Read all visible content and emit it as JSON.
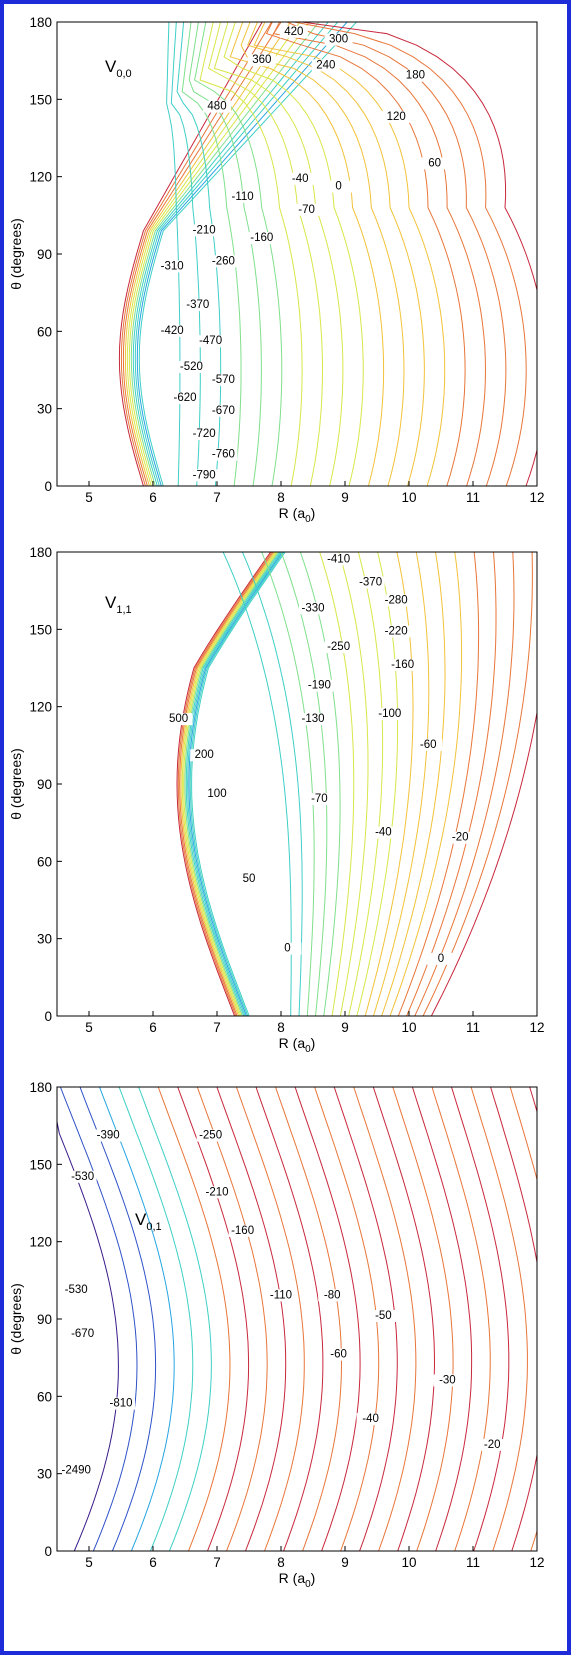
{
  "frame_color": "#1d2bd8",
  "colormap": [
    "#3a1a8a",
    "#2f52c8",
    "#25a4e2",
    "#3ecfc6",
    "#7fe08c",
    "#d8e64a",
    "#f2c23a",
    "#e8763a",
    "#c8283c"
  ],
  "chart_data": [
    {
      "type": "contour",
      "title": "V",
      "title_subscript": "0,0",
      "xlabel": "R (a",
      "xlabel_subscript": "0",
      "xlabel_suffix": ")",
      "ylabel": "θ (degrees)",
      "xlim": [
        4.5,
        12
      ],
      "ylim": [
        0,
        180
      ],
      "xticks": [
        5,
        6,
        7,
        8,
        9,
        10,
        11,
        12
      ],
      "yticks": [
        0,
        30,
        60,
        90,
        120,
        150,
        180
      ],
      "contour_labels": [
        {
          "text": "420",
          "x": 8.2,
          "y": 175
        },
        {
          "text": "300",
          "x": 8.9,
          "y": 172
        },
        {
          "text": "360",
          "x": 7.7,
          "y": 164
        },
        {
          "text": "240",
          "x": 8.7,
          "y": 162
        },
        {
          "text": "180",
          "x": 10.1,
          "y": 158
        },
        {
          "text": "480",
          "x": 7.0,
          "y": 146
        },
        {
          "text": "120",
          "x": 9.8,
          "y": 142
        },
        {
          "text": "60",
          "x": 10.4,
          "y": 124
        },
        {
          "text": "-40",
          "x": 8.3,
          "y": 118
        },
        {
          "text": "0",
          "x": 8.9,
          "y": 115
        },
        {
          "text": "-110",
          "x": 7.4,
          "y": 111
        },
        {
          "text": "-70",
          "x": 8.4,
          "y": 106
        },
        {
          "text": "-210",
          "x": 6.8,
          "y": 98
        },
        {
          "text": "-160",
          "x": 7.7,
          "y": 95
        },
        {
          "text": "-260",
          "x": 7.1,
          "y": 86
        },
        {
          "text": "-310",
          "x": 6.3,
          "y": 84
        },
        {
          "text": "-370",
          "x": 6.7,
          "y": 69
        },
        {
          "text": "-420",
          "x": 6.3,
          "y": 59
        },
        {
          "text": "-470",
          "x": 6.9,
          "y": 55
        },
        {
          "text": "-520",
          "x": 6.6,
          "y": 45
        },
        {
          "text": "-570",
          "x": 7.1,
          "y": 40
        },
        {
          "text": "-620",
          "x": 6.5,
          "y": 33
        },
        {
          "text": "-670",
          "x": 7.1,
          "y": 28
        },
        {
          "text": "-720",
          "x": 6.8,
          "y": 19
        },
        {
          "text": "-760",
          "x": 7.1,
          "y": 11
        },
        {
          "text": "-790",
          "x": 6.8,
          "y": 3
        }
      ]
    },
    {
      "type": "contour",
      "title": "V",
      "title_subscript": "1,1",
      "xlabel": "R (a",
      "xlabel_subscript": "0",
      "xlabel_suffix": ")",
      "ylabel": "θ (degrees)",
      "xlim": [
        4.5,
        12
      ],
      "ylim": [
        0,
        180
      ],
      "xticks": [
        5,
        6,
        7,
        8,
        9,
        10,
        11,
        12
      ],
      "yticks": [
        0,
        30,
        60,
        90,
        120,
        150,
        180
      ],
      "contour_labels": [
        {
          "text": "-410",
          "x": 8.9,
          "y": 176
        },
        {
          "text": "-370",
          "x": 9.4,
          "y": 167
        },
        {
          "text": "-330",
          "x": 8.5,
          "y": 157
        },
        {
          "text": "-280",
          "x": 9.8,
          "y": 160
        },
        {
          "text": "-220",
          "x": 9.8,
          "y": 148
        },
        {
          "text": "-250",
          "x": 8.9,
          "y": 142
        },
        {
          "text": "-160",
          "x": 9.9,
          "y": 135
        },
        {
          "text": "-190",
          "x": 8.6,
          "y": 127
        },
        {
          "text": "-100",
          "x": 9.7,
          "y": 116
        },
        {
          "text": "-130",
          "x": 8.5,
          "y": 114
        },
        {
          "text": "-60",
          "x": 10.3,
          "y": 104
        },
        {
          "text": "500",
          "x": 6.4,
          "y": 114
        },
        {
          "text": "200",
          "x": 6.8,
          "y": 100
        },
        {
          "text": "100",
          "x": 7.0,
          "y": 85
        },
        {
          "text": "-70",
          "x": 8.6,
          "y": 83
        },
        {
          "text": "-40",
          "x": 9.6,
          "y": 70
        },
        {
          "text": "-20",
          "x": 10.8,
          "y": 68
        },
        {
          "text": "50",
          "x": 7.5,
          "y": 52
        },
        {
          "text": "0",
          "x": 8.1,
          "y": 25
        },
        {
          "text": "0",
          "x": 10.5,
          "y": 21
        }
      ]
    },
    {
      "type": "contour",
      "title": "V",
      "title_subscript": "0,1",
      "xlabel": "R (a",
      "xlabel_subscript": "0",
      "xlabel_suffix": ")",
      "ylabel": "θ (degrees)",
      "xlim": [
        4.5,
        12
      ],
      "ylim": [
        0,
        180
      ],
      "xticks": [
        5,
        6,
        7,
        8,
        9,
        10,
        11,
        12
      ],
      "yticks": [
        0,
        30,
        60,
        90,
        120,
        150,
        180
      ],
      "contour_labels": [
        {
          "text": "-390",
          "x": 5.3,
          "y": 160
        },
        {
          "text": "-250",
          "x": 6.9,
          "y": 160
        },
        {
          "text": "-530",
          "x": 4.9,
          "y": 144
        },
        {
          "text": "-210",
          "x": 7.0,
          "y": 138
        },
        {
          "text": "-160",
          "x": 7.4,
          "y": 123
        },
        {
          "text": "-530",
          "x": 4.8,
          "y": 100
        },
        {
          "text": "-110",
          "x": 8.0,
          "y": 98
        },
        {
          "text": "-80",
          "x": 8.8,
          "y": 98
        },
        {
          "text": "-50",
          "x": 9.6,
          "y": 90
        },
        {
          "text": "-670",
          "x": 4.9,
          "y": 83
        },
        {
          "text": "-60",
          "x": 8.9,
          "y": 75
        },
        {
          "text": "-30",
          "x": 10.6,
          "y": 65
        },
        {
          "text": "-810",
          "x": 5.5,
          "y": 56
        },
        {
          "text": "-40",
          "x": 9.4,
          "y": 50
        },
        {
          "text": "-20",
          "x": 11.3,
          "y": 40
        },
        {
          "text": "-2490",
          "x": 4.8,
          "y": 30
        }
      ]
    }
  ]
}
